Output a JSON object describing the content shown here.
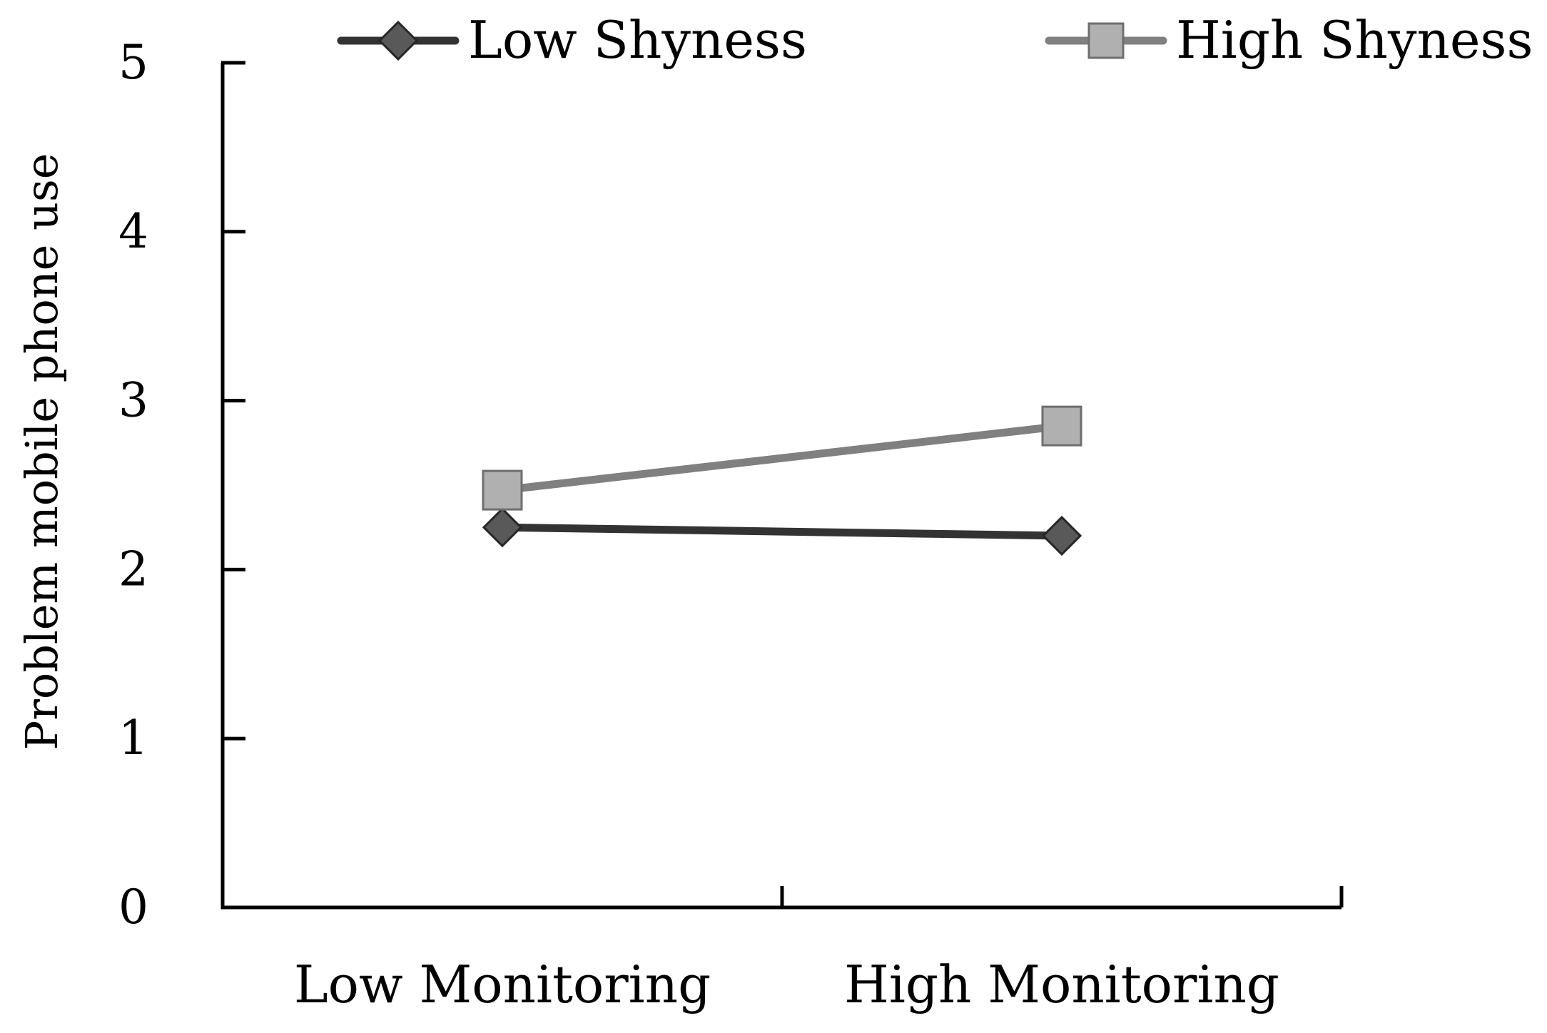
{
  "chart_data": {
    "type": "line",
    "categories": [
      "Low Monitoring",
      "High Monitoring"
    ],
    "series": [
      {
        "name": "Low Shyness",
        "values": [
          2.25,
          2.2
        ],
        "color": "#333333",
        "marker": "diamond",
        "marker_fill": "#595959"
      },
      {
        "name": "High Shyness",
        "values": [
          2.47,
          2.85
        ],
        "color": "#808080",
        "marker": "square",
        "marker_fill": "#b0b0b0"
      }
    ],
    "title": "",
    "xlabel": "",
    "ylabel": "Problem mobile phone use",
    "ylim": [
      0,
      5
    ],
    "yticks": [
      "0",
      "1",
      "2",
      "3",
      "4",
      "5"
    ],
    "grid": false,
    "legend_position": "top"
  }
}
